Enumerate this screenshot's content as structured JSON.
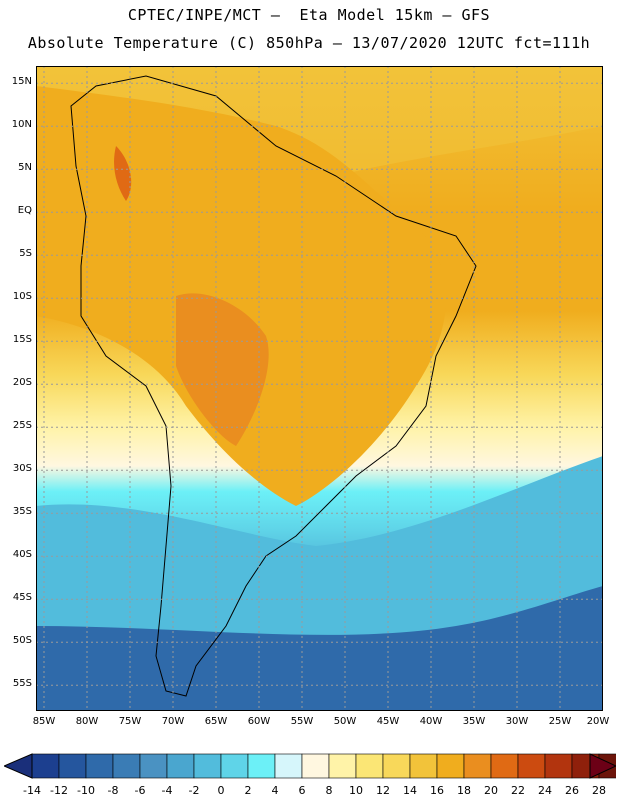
{
  "header": {
    "line1": "CPTEC/INPE/MCT —  Eta Model 15km — GFS",
    "line2": "Absolute Temperature (C) 850hPa — 13/07/2020 12UTC fct=111h"
  },
  "map": {
    "lat_labels": [
      "15N",
      "10N",
      "5N",
      "EQ",
      "5S",
      "10S",
      "15S",
      "20S",
      "25S",
      "30S",
      "35S",
      "40S",
      "45S",
      "50S",
      "55S"
    ],
    "lon_labels": [
      "85W",
      "80W",
      "75W",
      "70W",
      "65W",
      "60W",
      "55W",
      "50W",
      "45W",
      "40W",
      "35W",
      "30W",
      "25W",
      "20W"
    ],
    "lat_range": [
      17,
      -58
    ],
    "lon_range": [
      -85,
      -20
    ],
    "gridlines": "dotted"
  },
  "colorbar": {
    "ticks": [
      "-14",
      "-12",
      "-10",
      "-8",
      "-6",
      "-4",
      "-2",
      "0",
      "2",
      "4",
      "6",
      "8",
      "10",
      "12",
      "14",
      "16",
      "18",
      "20",
      "22",
      "24",
      "26",
      "28"
    ],
    "colors": [
      "#1c3f8f",
      "#25569e",
      "#2f6aaa",
      "#3a7cb5",
      "#4a92c2",
      "#4aa6cf",
      "#52bcdc",
      "#5fd4e8",
      "#6cf0f7",
      "#d6f6fb",
      "#fff7e0",
      "#fff3a8",
      "#fbe675",
      "#f8d85a",
      "#f2c33a",
      "#f0ad1e",
      "#ea8e1f",
      "#e06a14",
      "#cc4b10",
      "#b2340e",
      "#8f200b",
      "#6c140a"
    ]
  }
}
